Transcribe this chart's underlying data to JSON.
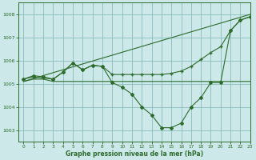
{
  "background_color": "#cce8e8",
  "grid_color": "#88bbbb",
  "line_color": "#2d6b2d",
  "title": "Graphe pression niveau de la mer (hPa)",
  "xlim": [
    -0.5,
    23
  ],
  "ylim": [
    1002.5,
    1008.5
  ],
  "yticks": [
    1003,
    1004,
    1005,
    1006,
    1007,
    1008
  ],
  "xticks": [
    0,
    1,
    2,
    3,
    4,
    5,
    6,
    7,
    8,
    9,
    10,
    11,
    12,
    13,
    14,
    15,
    16,
    17,
    18,
    19,
    20,
    21,
    22,
    23
  ],
  "series": [
    {
      "x": [
        0,
        1,
        2,
        3,
        4,
        5,
        6,
        7,
        8,
        9,
        10,
        11,
        12,
        13,
        14,
        15,
        16,
        17,
        18,
        19,
        20,
        21,
        22,
        23
      ],
      "y": [
        1005.1,
        1005.2,
        1005.2,
        1005.1,
        1005.1,
        1005.1,
        1005.1,
        1005.1,
        1005.1,
        1005.1,
        1005.1,
        1005.1,
        1005.1,
        1005.1,
        1005.1,
        1005.1,
        1005.1,
        1005.1,
        1005.1,
        1005.1,
        1005.1,
        1005.1,
        1005.1,
        1005.1
      ],
      "marker": null,
      "lw": 0.8
    },
    {
      "x": [
        0,
        23
      ],
      "y": [
        1005.1,
        1008.0
      ],
      "marker": null,
      "lw": 0.8
    },
    {
      "x": [
        0,
        1,
        2,
        3,
        4,
        5,
        6,
        7,
        8,
        9,
        10,
        11,
        12,
        13,
        14,
        15,
        16,
        17,
        18,
        19,
        20,
        21,
        22,
        23
      ],
      "y": [
        1005.2,
        1005.3,
        1005.25,
        1005.2,
        1005.5,
        1005.9,
        1005.6,
        1005.8,
        1005.75,
        1005.4,
        1005.4,
        1005.4,
        1005.4,
        1005.4,
        1005.4,
        1005.45,
        1005.55,
        1005.75,
        1006.05,
        1006.35,
        1006.6,
        1007.3,
        1007.75,
        1007.9
      ],
      "marker": "+",
      "markersize": 3,
      "lw": 0.8
    },
    {
      "x": [
        0,
        1,
        2,
        3,
        4,
        5,
        6,
        7,
        8,
        9,
        10,
        11,
        12,
        13,
        14,
        15,
        16,
        17,
        18,
        19,
        20,
        21,
        22,
        23
      ],
      "y": [
        1005.2,
        1005.35,
        1005.3,
        1005.2,
        1005.5,
        1005.9,
        1005.6,
        1005.8,
        1005.75,
        1005.05,
        1004.85,
        1004.55,
        1004.0,
        1003.65,
        1003.1,
        1003.1,
        1003.3,
        1004.0,
        1004.4,
        1005.05,
        1005.05,
        1007.3,
        1007.75,
        1007.9
      ],
      "marker": "D",
      "markersize": 2,
      "lw": 0.8
    }
  ]
}
